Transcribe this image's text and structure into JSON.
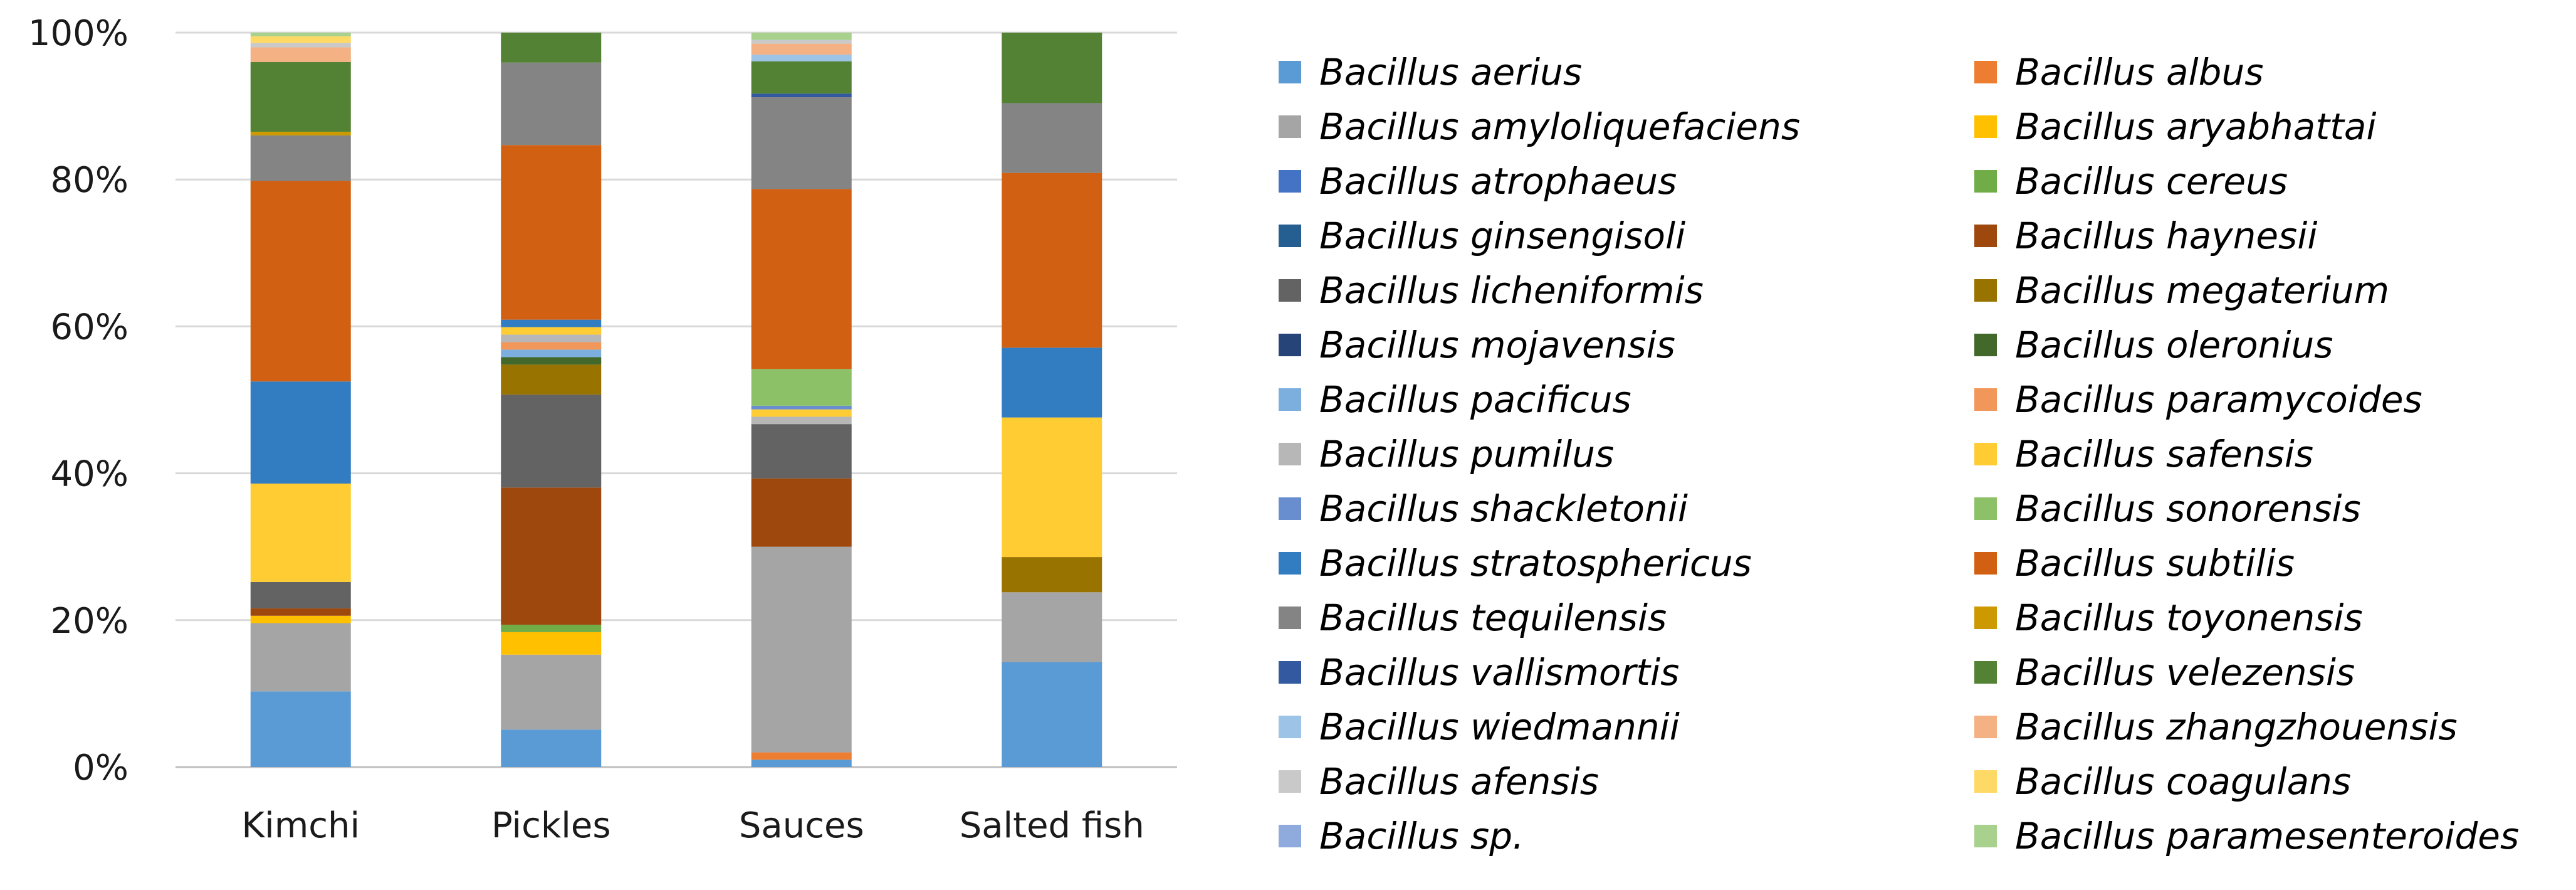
{
  "chart_data": {
    "type": "bar",
    "stacked": true,
    "percent": true,
    "categories": [
      "Kimchi",
      "Pickles",
      "Sauces",
      "Salted fish"
    ],
    "y_ticks": [
      "0%",
      "20%",
      "40%",
      "60%",
      "80%",
      "100%"
    ],
    "ylim": [
      0,
      100
    ],
    "grid": true,
    "legend_position": "right",
    "series": [
      {
        "name": "Bacillus aerius",
        "color": "#5b9bd5",
        "values": [
          10.3,
          5.0,
          1.0,
          14.3
        ]
      },
      {
        "name": "Bacillus albus",
        "color": "#ed7d31",
        "values": [
          0,
          0,
          1.0,
          0
        ]
      },
      {
        "name": "Bacillus amyloliquefaciens",
        "color": "#a5a5a5",
        "values": [
          9.3,
          10.0,
          28.0,
          9.5
        ]
      },
      {
        "name": "Bacillus aryabhattai",
        "color": "#ffc000",
        "values": [
          1.0,
          3.0,
          0,
          0
        ]
      },
      {
        "name": "Bacillus atrophaeus",
        "color": "#4472c4",
        "values": [
          0,
          0,
          0,
          0
        ]
      },
      {
        "name": "Bacillus cereus",
        "color": "#70ad47",
        "values": [
          0,
          1.0,
          0,
          0
        ]
      },
      {
        "name": "Bacillus ginsengisoli",
        "color": "#255e91",
        "values": [
          0,
          0,
          0,
          0
        ]
      },
      {
        "name": "Bacillus haynesii",
        "color": "#9e480e",
        "values": [
          1.0,
          18.3,
          9.3,
          0
        ]
      },
      {
        "name": "Bacillus licheniformis",
        "color": "#636363",
        "values": [
          3.6,
          12.4,
          7.4,
          0
        ]
      },
      {
        "name": "Bacillus megaterium",
        "color": "#997300",
        "values": [
          0,
          4.0,
          0,
          4.8
        ]
      },
      {
        "name": "Bacillus mojavensis",
        "color": "#264478",
        "values": [
          0,
          0,
          0,
          0
        ]
      },
      {
        "name": "Bacillus oleronius",
        "color": "#43682b",
        "values": [
          0,
          1.0,
          0,
          0
        ]
      },
      {
        "name": "Bacillus pacificus",
        "color": "#7cafdd",
        "values": [
          0,
          1.0,
          0,
          0
        ]
      },
      {
        "name": "Bacillus paramycoides",
        "color": "#f1975a",
        "values": [
          0,
          1.0,
          0,
          0
        ]
      },
      {
        "name": "Bacillus pumilus",
        "color": "#b7b7b7",
        "values": [
          0,
          1.0,
          1.0,
          0
        ]
      },
      {
        "name": "Bacillus safensis",
        "color": "#ffcd33",
        "values": [
          13.4,
          1.0,
          1.0,
          19.0
        ]
      },
      {
        "name": "Bacillus shackletonii",
        "color": "#698ed0",
        "values": [
          0,
          0,
          0.5,
          0
        ]
      },
      {
        "name": "Bacillus sonorensis",
        "color": "#8cc168",
        "values": [
          0,
          0,
          5.0,
          0
        ]
      },
      {
        "name": "Bacillus stratosphericus",
        "color": "#327dc2",
        "values": [
          13.9,
          1.0,
          0,
          9.5
        ]
      },
      {
        "name": "Bacillus subtilis",
        "color": "#d26012",
        "values": [
          27.3,
          23.3,
          24.5,
          23.8
        ]
      },
      {
        "name": "Bacillus tequilensis",
        "color": "#848484",
        "values": [
          6.2,
          11.0,
          12.5,
          9.5
        ]
      },
      {
        "name": "Bacillus toyonensis",
        "color": "#cc9a00",
        "values": [
          0.5,
          0,
          0,
          0
        ]
      },
      {
        "name": "Bacillus vallismortis",
        "color": "#335aa1",
        "values": [
          0,
          0,
          0.5,
          0
        ]
      },
      {
        "name": "Bacillus velezensis",
        "color": "#548235",
        "values": [
          9.5,
          4.0,
          4.4,
          9.6
        ]
      },
      {
        "name": "Bacillus wiedmannii",
        "color": "#9dc3e6",
        "values": [
          0,
          0,
          0.9,
          0
        ]
      },
      {
        "name": "Bacillus zhangzhouensis",
        "color": "#f4b183",
        "values": [
          2.0,
          0,
          1.5,
          0
        ]
      },
      {
        "name": "Bacillus afensis",
        "color": "#c9c9c9",
        "values": [
          0.6,
          0,
          0.5,
          0
        ]
      },
      {
        "name": "Bacillus coagulans",
        "color": "#ffd966",
        "values": [
          0.9,
          0,
          0,
          0
        ]
      },
      {
        "name": "Bacillus sp.",
        "color": "#8faadc",
        "values": [
          0,
          0,
          0,
          0
        ]
      },
      {
        "name": "Bacillus paramesenteroides",
        "color": "#a9d18e",
        "values": [
          0.5,
          0,
          1.0,
          0
        ]
      }
    ]
  }
}
